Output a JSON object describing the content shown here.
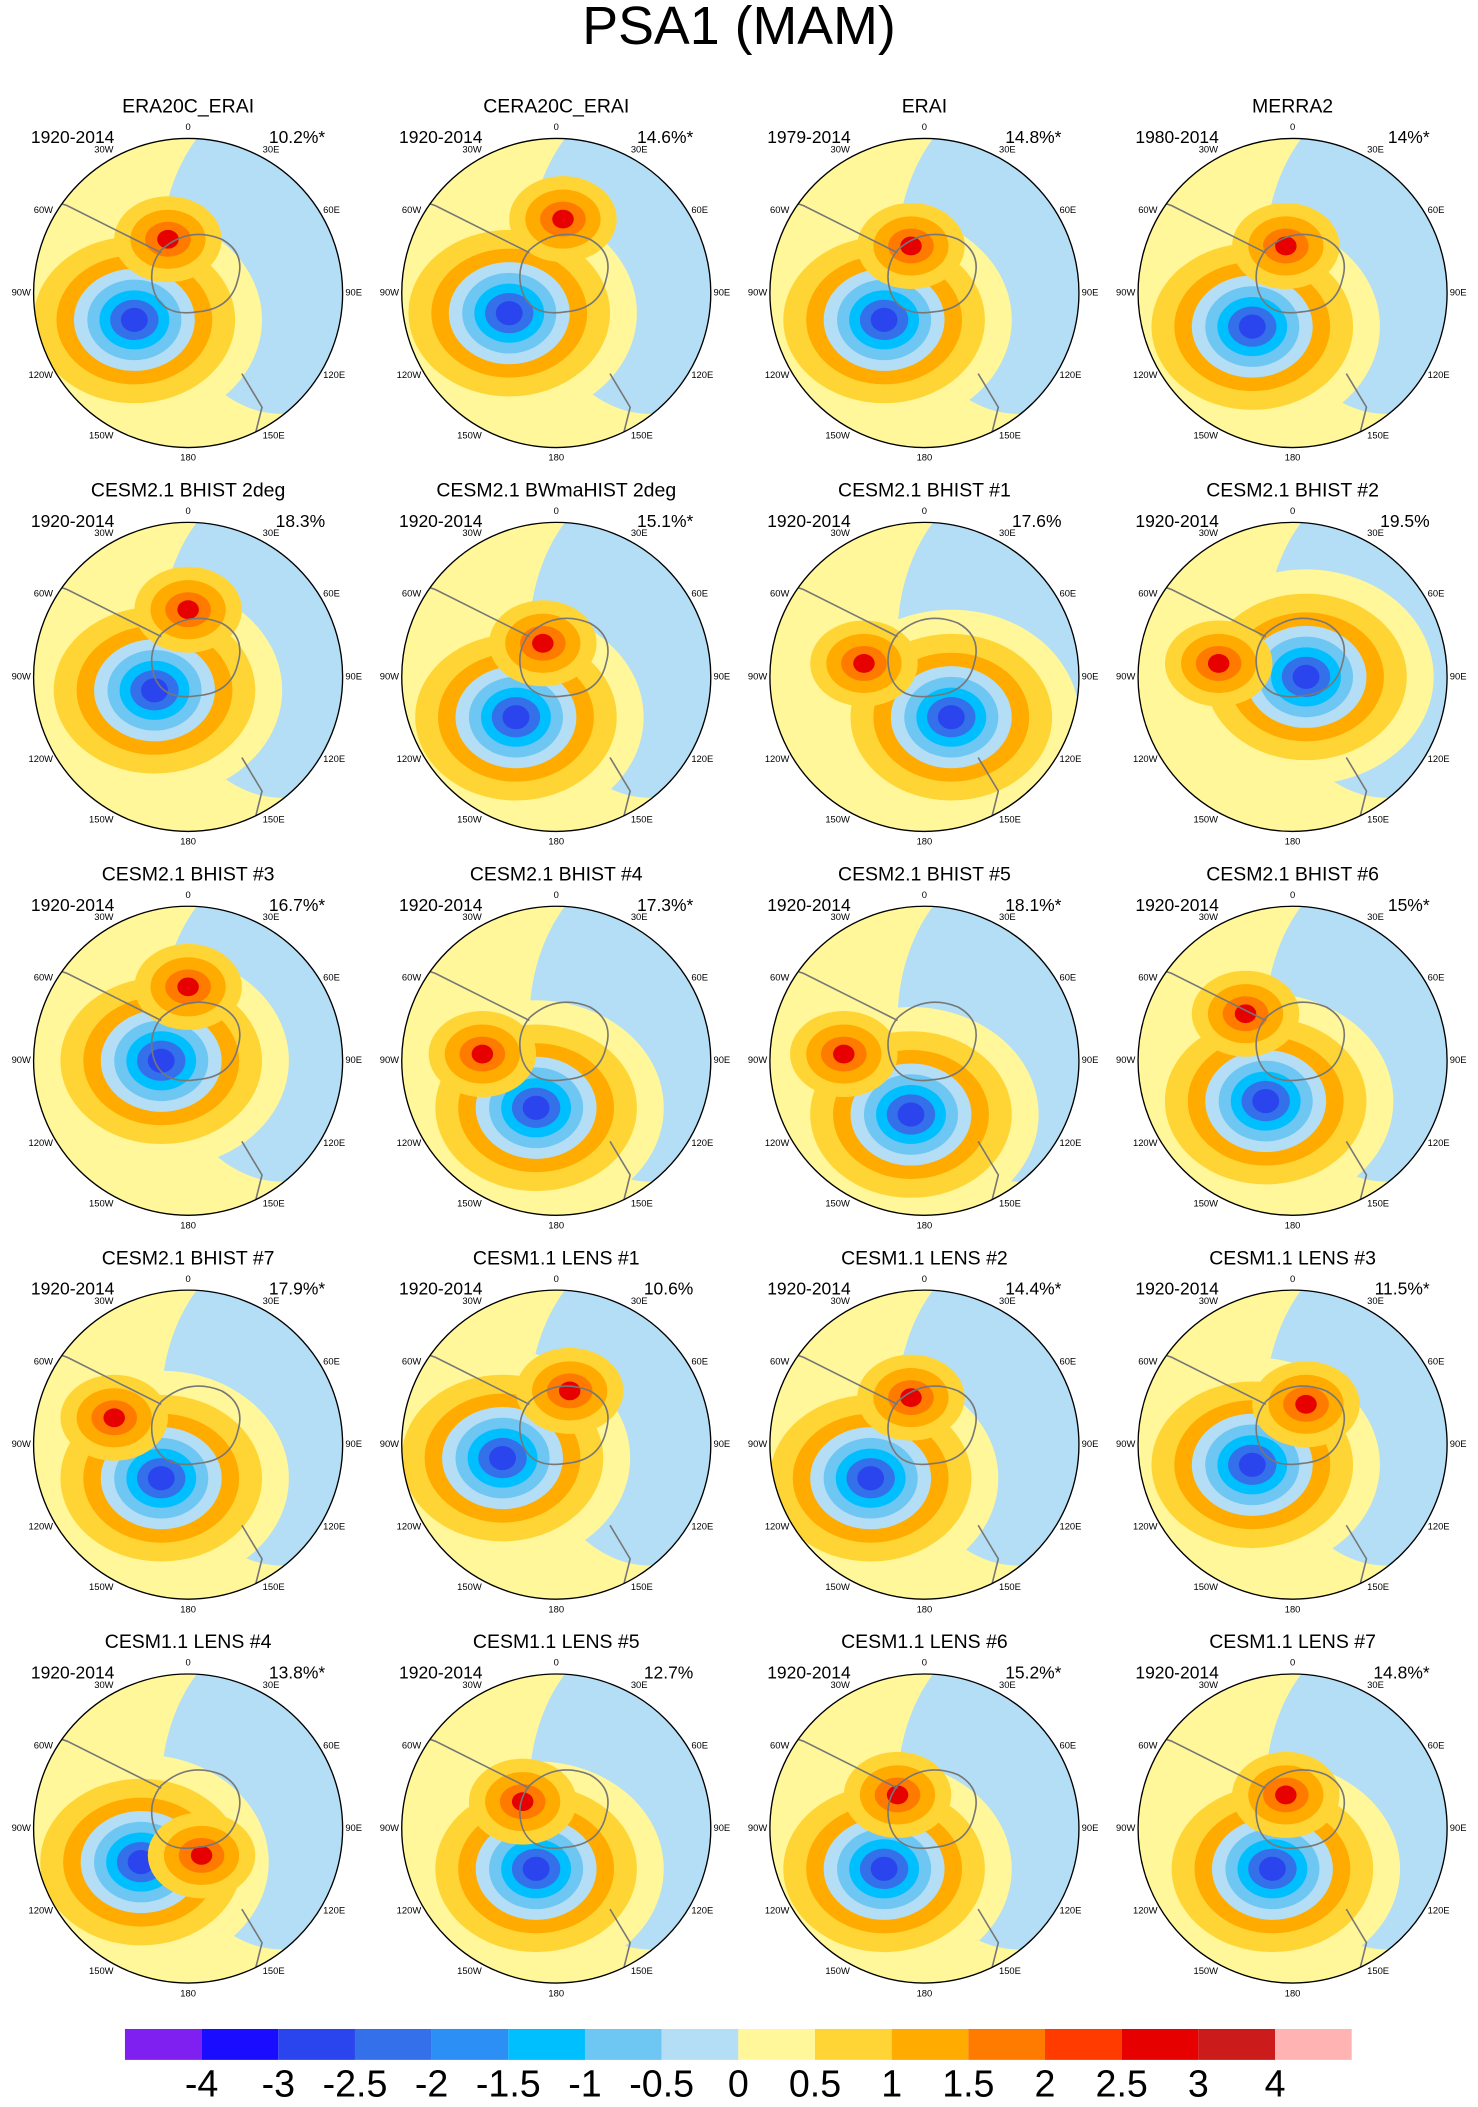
{
  "header": {
    "title": "PSA1 (MAM)"
  },
  "lon_labels": [
    "0",
    "30E",
    "60E",
    "90E",
    "120E",
    "150E",
    "180",
    "150W",
    "120W",
    "90W",
    "60W",
    "30W"
  ],
  "panels": [
    {
      "title": "ERA20C_ERAI",
      "period": "1920-2014",
      "percent": "10.2%*"
    },
    {
      "title": "CERA20C_ERAI",
      "period": "1920-2014",
      "percent": "14.6%*"
    },
    {
      "title": "ERAI",
      "period": "1979-2014",
      "percent": "14.8%*"
    },
    {
      "title": "MERRA2",
      "period": "1980-2014",
      "percent": "14%*"
    },
    {
      "title": "CESM2.1 BHIST 2deg",
      "period": "1920-2014",
      "percent": "18.3%"
    },
    {
      "title": "CESM2.1 BWmaHIST 2deg",
      "period": "1920-2014",
      "percent": "15.1%*"
    },
    {
      "title": "CESM2.1 BHIST #1",
      "period": "1920-2014",
      "percent": "17.6%"
    },
    {
      "title": "CESM2.1 BHIST #2",
      "period": "1920-2014",
      "percent": "19.5%"
    },
    {
      "title": "CESM2.1 BHIST #3",
      "period": "1920-2014",
      "percent": "16.7%*"
    },
    {
      "title": "CESM2.1 BHIST #4",
      "period": "1920-2014",
      "percent": "17.3%*"
    },
    {
      "title": "CESM2.1 BHIST #5",
      "period": "1920-2014",
      "percent": "18.1%*"
    },
    {
      "title": "CESM2.1 BHIST #6",
      "period": "1920-2014",
      "percent": "15%*"
    },
    {
      "title": "CESM2.1 BHIST #7",
      "period": "1920-2014",
      "percent": "17.9%*"
    },
    {
      "title": "CESM1.1 LENS #1",
      "period": "1920-2014",
      "percent": "10.6%"
    },
    {
      "title": "CESM1.1 LENS #2",
      "period": "1920-2014",
      "percent": "14.4%*"
    },
    {
      "title": "CESM1.1 LENS #3",
      "period": "1920-2014",
      "percent": "11.5%*"
    },
    {
      "title": "CESM1.1 LENS #4",
      "period": "1920-2014",
      "percent": "13.8%*"
    },
    {
      "title": "CESM1.1 LENS #5",
      "period": "1920-2014",
      "percent": "12.7%"
    },
    {
      "title": "CESM1.1 LENS #6",
      "period": "1920-2014",
      "percent": "15.2%*"
    },
    {
      "title": "CESM1.1 LENS #7",
      "period": "1920-2014",
      "percent": "14.8%*"
    }
  ],
  "colorbar": {
    "colors": [
      "#8020f0",
      "#1a0cff",
      "#2b45ee",
      "#3470ea",
      "#2b8ff5",
      "#00bfff",
      "#6ec6f2",
      "#b3def5",
      "#fff799",
      "#ffd535",
      "#ffab00",
      "#ff7b00",
      "#ff3b00",
      "#e60000",
      "#cc1b1b",
      "#ffb3b3"
    ],
    "labels": [
      "-4",
      "-3",
      "-2.5",
      "-2",
      "-1.5",
      "-1",
      "-0.5",
      "0",
      "0.5",
      "1",
      "1.5",
      "2",
      "2.5",
      "3",
      "4"
    ]
  }
}
